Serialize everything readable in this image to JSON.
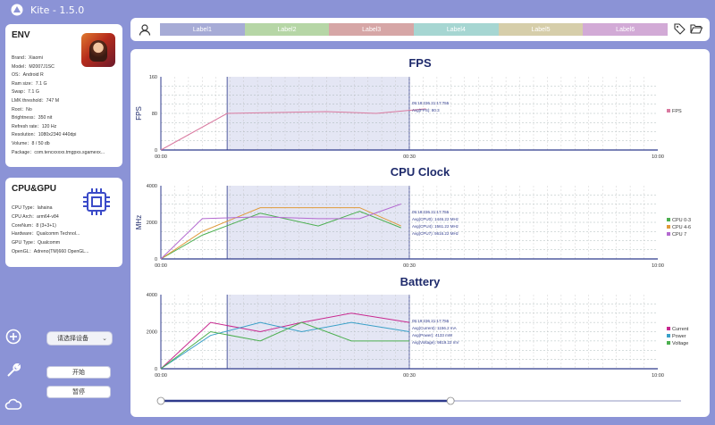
{
  "app": {
    "title": "Kite - 1.5.0"
  },
  "env": {
    "heading": "ENV",
    "fields": [
      "Brand：Xiaomi",
      "Model：M2007J1SC",
      "OS：Android R",
      "Ram size：7.1 G",
      "Swap：7.1 G",
      "LMK threshold：747 M",
      "Root：No",
      "Brightness：350 nit",
      "Refresh rate：120 Hz",
      "Resolution：1080x2340 440dpi",
      "Volume：8 / 50 db",
      "Package：com.tencxxxxx.tmgpxs.sgamexx..."
    ]
  },
  "cpu_gpu": {
    "heading": "CPU&GPU",
    "fields": [
      "CPU Type：lahaina",
      "CPU Arch：arm64-v84",
      "CoreNum：8 (3+3+1)",
      "Hardware：Qualcomm Technol...",
      "GPU Type：Qualcomm",
      "OpenGL：Adreno(TM)660 OpenGL..."
    ]
  },
  "controls": {
    "device_select": "请选择设备",
    "start": "开始",
    "pause": "暂停"
  },
  "labels": [
    {
      "text": "Label1",
      "color": "#a6abd6"
    },
    {
      "text": "Label2",
      "color": "#b6d6a6"
    },
    {
      "text": "Label3",
      "color": "#d6a6a6"
    },
    {
      "text": "Label4",
      "color": "#a6d6d2"
    },
    {
      "text": "Label5",
      "color": "#d6ceaa"
    },
    {
      "text": "Label6",
      "color": "#d2aad6"
    }
  ],
  "colors": {
    "accent": "#8b93d6",
    "title": "#1e2a6b",
    "selection": "#e4e6f4",
    "axis": "#2e3a8c"
  },
  "chart_data": [
    {
      "type": "line",
      "title": "FPS",
      "ylabel": "FPS",
      "ylim": [
        0,
        160
      ],
      "yticks": [
        "0",
        "80",
        "160"
      ],
      "xticks": [
        "00:00",
        "00:30",
        "10:00"
      ],
      "x": [
        0,
        8,
        14,
        20,
        26,
        32
      ],
      "series": [
        {
          "name": "FPS",
          "color": "#d97aa0",
          "values": [
            0,
            80,
            82,
            84,
            80,
            90
          ]
        }
      ],
      "selection": [
        8,
        30
      ],
      "annotation": [
        "05:18:236 21:17:755",
        "Avg(FPS): 80.3"
      ],
      "legend": "right"
    },
    {
      "type": "line",
      "title": "CPU Clock",
      "ylabel": "MHz",
      "ylim": [
        0,
        4000
      ],
      "yticks": [
        "0",
        "2000",
        "4000"
      ],
      "xticks": [
        "00:00",
        "00:30",
        "10:00"
      ],
      "x": [
        0,
        5,
        12,
        19,
        24,
        29
      ],
      "series": [
        {
          "name": "CPU 0-3",
          "color": "#4caf50",
          "values": [
            0,
            1300,
            2500,
            1800,
            2600,
            1700
          ]
        },
        {
          "name": "CPU 4-6",
          "color": "#e09a3a",
          "values": [
            0,
            1500,
            2800,
            2800,
            2800,
            1800
          ]
        },
        {
          "name": "CPU 7",
          "color": "#b46ad0",
          "values": [
            0,
            2200,
            2300,
            2200,
            2200,
            3000
          ]
        }
      ],
      "selection": [
        8,
        30
      ],
      "annotation": [
        "05:18:236 21:17:755",
        "Avg(CPU0): 1446.22 MHz",
        "Avg(CPU4): 1561.22 MHz",
        "Avg(CPU7): 5616.22 MHz"
      ],
      "legend": "right"
    },
    {
      "type": "line",
      "title": "Battery",
      "ylim": [
        0,
        4000
      ],
      "yticks": [
        "0",
        "2000",
        "4000"
      ],
      "xticks": [
        "00:00",
        "00:30",
        "10:00"
      ],
      "x": [
        0,
        6,
        12,
        17,
        23,
        30
      ],
      "series": [
        {
          "name": "Current",
          "color": "#c8288f",
          "values": [
            0,
            2500,
            2000,
            2500,
            3000,
            2500
          ]
        },
        {
          "name": "Power",
          "color": "#3aa0c8",
          "values": [
            0,
            1800,
            2500,
            2000,
            2500,
            2000
          ]
        },
        {
          "name": "Voltage",
          "color": "#4caf50",
          "values": [
            0,
            2000,
            1500,
            2500,
            1500,
            1500
          ]
        }
      ],
      "selection": [
        8,
        30
      ],
      "annotation": [
        "05:19:236 21:17:755",
        "Avg(Current): 1156.2 mA",
        "Avg(Power): 4133 mW",
        "Avg(Voltage): 9819.22 mV"
      ],
      "legend": "right"
    }
  ],
  "slider": {
    "start_fraction": 0.0,
    "end_fraction": 0.56
  }
}
